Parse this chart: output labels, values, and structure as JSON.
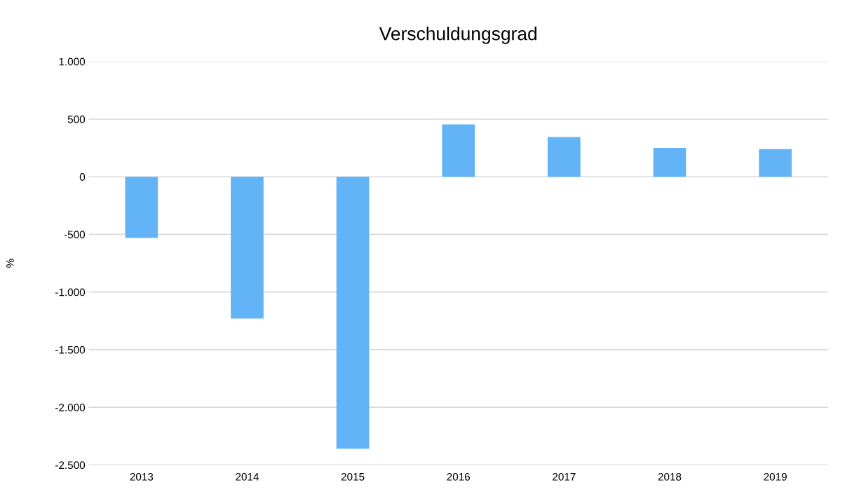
{
  "chart_data": {
    "type": "bar",
    "title": "Verschuldungsgrad",
    "ylabel": "%",
    "categories": [
      "2013",
      "2014",
      "2015",
      "2016",
      "2017",
      "2018",
      "2019"
    ],
    "values": [
      -530,
      -1230,
      -2360,
      455,
      345,
      250,
      240
    ],
    "color": "#63b4f6",
    "ylim": [
      -2500,
      1000
    ],
    "yticks": [
      {
        "value": -2500,
        "label": "-2.500"
      },
      {
        "value": -2000,
        "label": "-2.000"
      },
      {
        "value": -1500,
        "label": "-1.500"
      },
      {
        "value": -1000,
        "label": "-1.000"
      },
      {
        "value": -500,
        "label": "-500"
      },
      0,
      500,
      {
        "value": 1000,
        "label": "1.000"
      }
    ],
    "grid": "y"
  }
}
